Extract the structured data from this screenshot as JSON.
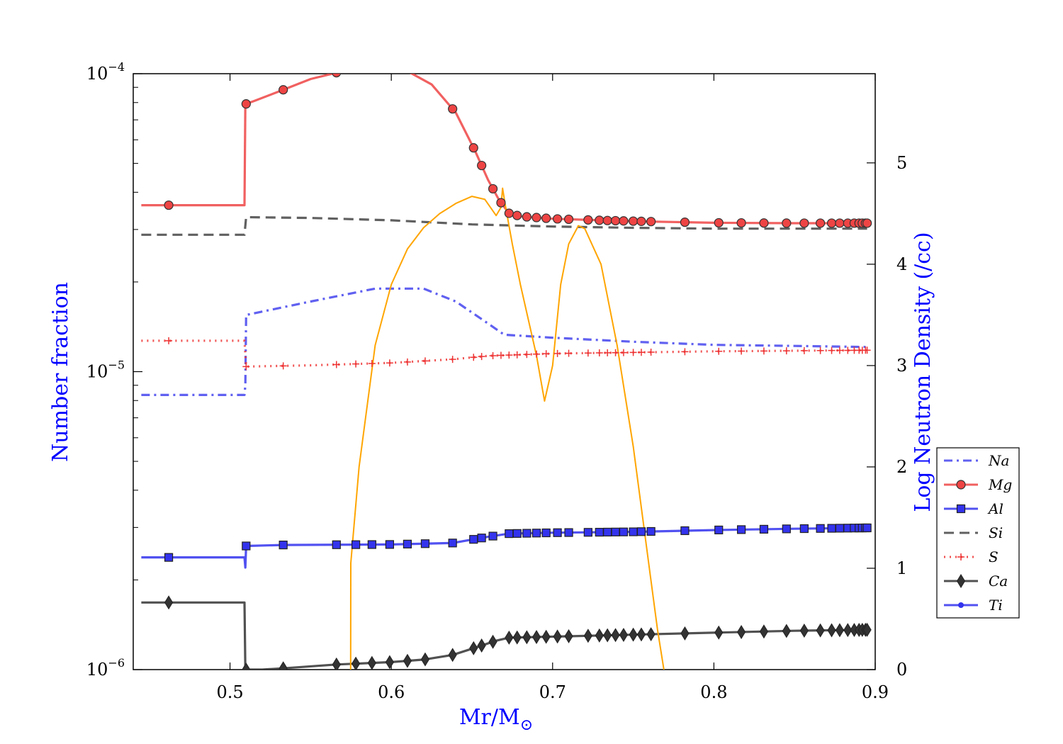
{
  "chart_data": {
    "type": "line",
    "xlabel": "Mr/M",
    "xlabel_sub": "⊙",
    "ylabel_left": "Number fraction",
    "ylabel_right": "Log Neutron Density (/cc)",
    "xlim": [
      0.44,
      0.9
    ],
    "ylim_left": [
      1e-06,
      0.0001
    ],
    "yscale_left": "log",
    "ylim_right": [
      0,
      5.88
    ],
    "x_ticks": [
      0.5,
      0.6,
      0.7,
      0.8,
      0.9
    ],
    "x_tick_labels": [
      "0.5",
      "0.6",
      "0.7",
      "0.8",
      "0.9"
    ],
    "left_tick_labels": [
      {
        "value": 1e-06,
        "base": "10",
        "exp": "−6"
      },
      {
        "value": 1e-05,
        "base": "10",
        "exp": "−5"
      },
      {
        "value": 0.0001,
        "base": "10",
        "exp": "−4"
      }
    ],
    "right_ticks": [
      0,
      1,
      2,
      3,
      4,
      5
    ],
    "right_tick_labels": [
      "0",
      "1",
      "2",
      "3",
      "4",
      "5"
    ],
    "legend_position": "right",
    "series": [
      {
        "name": "Na",
        "color": "#4444ee",
        "dash": "dashdot",
        "marker": "none",
        "axis": "left",
        "points": [
          [
            0.445,
            8.35e-06
          ],
          [
            0.509,
            8.35e-06
          ],
          [
            0.5095,
            9e-06
          ],
          [
            0.51,
            1.55e-05
          ],
          [
            0.55,
            1.72e-05
          ],
          [
            0.59,
            1.9e-05
          ],
          [
            0.62,
            1.9e-05
          ],
          [
            0.64,
            1.72e-05
          ],
          [
            0.66,
            1.45e-05
          ],
          [
            0.67,
            1.33e-05
          ],
          [
            0.7,
            1.3e-05
          ],
          [
            0.75,
            1.26e-05
          ],
          [
            0.8,
            1.23e-05
          ],
          [
            0.85,
            1.22e-05
          ],
          [
            0.895,
            1.21e-05
          ]
        ]
      },
      {
        "name": "Mg",
        "color": "#ee4444",
        "dash": "solid",
        "marker": "circle",
        "axis": "left",
        "points": [
          [
            0.445,
            3.62e-05
          ],
          [
            0.509,
            3.62e-05
          ],
          [
            0.5095,
            7.9e-05
          ],
          [
            0.515,
            8.1e-05
          ],
          [
            0.53,
            8.7e-05
          ],
          [
            0.55,
            9.6e-05
          ],
          [
            0.57,
            0.000102
          ],
          [
            0.61,
            0.000102
          ],
          [
            0.625,
            9.2e-05
          ],
          [
            0.64,
            7.4e-05
          ],
          [
            0.652,
            5.5e-05
          ],
          [
            0.66,
            4.4e-05
          ],
          [
            0.667,
            3.75e-05
          ],
          [
            0.673,
            3.4e-05
          ],
          [
            0.68,
            3.32e-05
          ],
          [
            0.7,
            3.26e-05
          ],
          [
            0.73,
            3.22e-05
          ],
          [
            0.76,
            3.19e-05
          ],
          [
            0.8,
            3.16e-05
          ],
          [
            0.85,
            3.15e-05
          ],
          [
            0.895,
            3.15e-05
          ]
        ],
        "marker_x": [
          0.462,
          0.51,
          0.533,
          0.566,
          0.638,
          0.651,
          0.656,
          0.663,
          0.668,
          0.673,
          0.678,
          0.684,
          0.69,
          0.696,
          0.703,
          0.71,
          0.722,
          0.729,
          0.734,
          0.739,
          0.744,
          0.75,
          0.755,
          0.761,
          0.782,
          0.803,
          0.817,
          0.831,
          0.845,
          0.856,
          0.866,
          0.873,
          0.878,
          0.883,
          0.887,
          0.89,
          0.892,
          0.894,
          0.895
        ]
      },
      {
        "name": "Al",
        "color": "#3333ee",
        "dash": "solid",
        "marker": "square",
        "axis": "left",
        "points": [
          [
            0.445,
            2.38e-06
          ],
          [
            0.509,
            2.38e-06
          ],
          [
            0.5095,
            2.2e-06
          ],
          [
            0.51,
            2.6e-06
          ],
          [
            0.533,
            2.62e-06
          ],
          [
            0.6,
            2.63e-06
          ],
          [
            0.638,
            2.66e-06
          ],
          [
            0.66,
            2.79e-06
          ],
          [
            0.673,
            2.86e-06
          ],
          [
            0.7,
            2.88e-06
          ],
          [
            0.75,
            2.9e-06
          ],
          [
            0.8,
            2.94e-06
          ],
          [
            0.85,
            2.97e-06
          ],
          [
            0.895,
            2.99e-06
          ]
        ],
        "marker_x": [
          0.462,
          0.51,
          0.533,
          0.566,
          0.578,
          0.588,
          0.599,
          0.61,
          0.621,
          0.638,
          0.651,
          0.656,
          0.663,
          0.673,
          0.678,
          0.684,
          0.69,
          0.696,
          0.703,
          0.71,
          0.722,
          0.729,
          0.734,
          0.739,
          0.744,
          0.75,
          0.755,
          0.761,
          0.782,
          0.803,
          0.817,
          0.831,
          0.845,
          0.856,
          0.866,
          0.873,
          0.878,
          0.883,
          0.887,
          0.89,
          0.892,
          0.894,
          0.895
        ]
      },
      {
        "name": "Si",
        "color": "#444444",
        "dash": "dashed",
        "marker": "none",
        "axis": "left",
        "points": [
          [
            0.445,
            2.88e-05
          ],
          [
            0.509,
            2.88e-05
          ],
          [
            0.51,
            3.3e-05
          ],
          [
            0.55,
            3.28e-05
          ],
          [
            0.6,
            3.22e-05
          ],
          [
            0.65,
            3.12e-05
          ],
          [
            0.7,
            3.07e-05
          ],
          [
            0.75,
            3.04e-05
          ],
          [
            0.8,
            3.02e-05
          ],
          [
            0.85,
            3.02e-05
          ],
          [
            0.895,
            3.02e-05
          ]
        ]
      },
      {
        "name": "S",
        "color": "#ee3333",
        "dash": "dotted",
        "marker": "plus",
        "axis": "left",
        "points": [
          [
            0.445,
            1.27e-05
          ],
          [
            0.509,
            1.27e-05
          ],
          [
            0.51,
            1.04e-05
          ],
          [
            0.55,
            1.05e-05
          ],
          [
            0.6,
            1.07e-05
          ],
          [
            0.638,
            1.1e-05
          ],
          [
            0.66,
            1.13e-05
          ],
          [
            0.7,
            1.15e-05
          ],
          [
            0.75,
            1.16e-05
          ],
          [
            0.8,
            1.17e-05
          ],
          [
            0.895,
            1.18e-05
          ]
        ],
        "marker_x": [
          0.462,
          0.51,
          0.533,
          0.566,
          0.578,
          0.588,
          0.599,
          0.61,
          0.621,
          0.638,
          0.651,
          0.656,
          0.663,
          0.668,
          0.673,
          0.678,
          0.684,
          0.69,
          0.696,
          0.703,
          0.71,
          0.722,
          0.729,
          0.734,
          0.739,
          0.744,
          0.75,
          0.755,
          0.761,
          0.782,
          0.803,
          0.817,
          0.831,
          0.845,
          0.856,
          0.866,
          0.873,
          0.878,
          0.883,
          0.887,
          0.89,
          0.892,
          0.894,
          0.895
        ]
      },
      {
        "name": "Ca",
        "color": "#333333",
        "dash": "solid",
        "marker": "diamond",
        "axis": "left",
        "points": [
          [
            0.445,
            1.68e-06
          ],
          [
            0.509,
            1.68e-06
          ],
          [
            0.5095,
            1e-06
          ],
          [
            0.52,
            1e-06
          ],
          [
            0.533,
            1.01e-06
          ],
          [
            0.566,
            1.04e-06
          ],
          [
            0.6,
            1.06e-06
          ],
          [
            0.62,
            1.08e-06
          ],
          [
            0.638,
            1.12e-06
          ],
          [
            0.651,
            1.18e-06
          ],
          [
            0.665,
            1.25e-06
          ],
          [
            0.673,
            1.28e-06
          ],
          [
            0.7,
            1.29e-06
          ],
          [
            0.75,
            1.31e-06
          ],
          [
            0.8,
            1.33e-06
          ],
          [
            0.85,
            1.35e-06
          ],
          [
            0.895,
            1.36e-06
          ]
        ],
        "marker_x": [
          0.462,
          0.51,
          0.533,
          0.566,
          0.578,
          0.588,
          0.599,
          0.61,
          0.621,
          0.638,
          0.651,
          0.656,
          0.663,
          0.673,
          0.678,
          0.684,
          0.69,
          0.696,
          0.703,
          0.71,
          0.722,
          0.729,
          0.734,
          0.739,
          0.744,
          0.75,
          0.755,
          0.761,
          0.782,
          0.803,
          0.817,
          0.831,
          0.845,
          0.856,
          0.866,
          0.873,
          0.878,
          0.883,
          0.887,
          0.89,
          0.892,
          0.894,
          0.895
        ]
      },
      {
        "name": "Ti",
        "color": "#3333ee",
        "dash": "solid",
        "marker": "dot",
        "axis": "left",
        "points": []
      },
      {
        "name": "",
        "color": "#ffa500",
        "dash": "solid",
        "marker": "none",
        "axis": "right",
        "points": [
          [
            0.5748,
            0.0
          ],
          [
            0.5749,
            1.05
          ],
          [
            0.58,
            2.0
          ],
          [
            0.59,
            3.2
          ],
          [
            0.6,
            3.8
          ],
          [
            0.61,
            4.15
          ],
          [
            0.62,
            4.36
          ],
          [
            0.63,
            4.5
          ],
          [
            0.64,
            4.6
          ],
          [
            0.65,
            4.67
          ],
          [
            0.658,
            4.64
          ],
          [
            0.665,
            4.48
          ],
          [
            0.668,
            4.56
          ],
          [
            0.669,
            4.75
          ],
          [
            0.6705,
            4.6
          ],
          [
            0.675,
            4.2
          ],
          [
            0.68,
            3.8
          ],
          [
            0.69,
            3.1
          ],
          [
            0.695,
            2.65
          ],
          [
            0.7,
            3.0
          ],
          [
            0.705,
            3.8
          ],
          [
            0.71,
            4.2
          ],
          [
            0.716,
            4.38
          ],
          [
            0.72,
            4.35
          ],
          [
            0.73,
            4.0
          ],
          [
            0.74,
            3.2
          ],
          [
            0.75,
            2.2
          ],
          [
            0.76,
            1.0
          ],
          [
            0.765,
            0.4
          ],
          [
            0.769,
            0.0
          ]
        ]
      }
    ]
  }
}
